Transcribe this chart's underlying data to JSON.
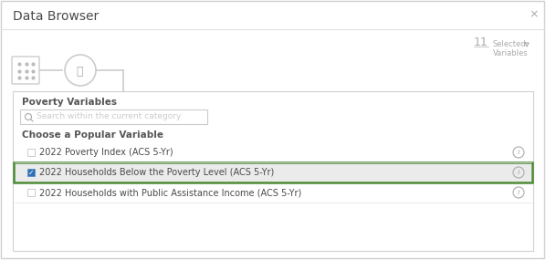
{
  "title": "Data Browser",
  "close_x": "×",
  "selected_label": "Selected\nVariables",
  "selected_number": "11",
  "category_title": "Poverty Variables",
  "search_placeholder": "Search within the current category",
  "choose_label": "Choose a Popular Variable",
  "items": [
    {
      "label": "2022 Poverty Index (ACS 5-Yr)",
      "checked": false,
      "highlighted": false
    },
    {
      "label": "2022 Households Below the Poverty Level (ACS 5-Yr)",
      "checked": true,
      "highlighted": true
    },
    {
      "label": "2022 Households with Public Assistance Income (ACS 5-Yr)",
      "checked": false,
      "highlighted": false
    }
  ],
  "bg_color": "#ffffff",
  "panel_bg": "#f8f8f8",
  "border_color": "#d0d0d0",
  "highlight_bg": "#ebebeb",
  "highlight_border": "#4e8a36",
  "check_color": "#3070b3",
  "title_color": "#4a4a4a",
  "text_color": "#4a4a4a",
  "gray_text": "#aaaaaa",
  "label_color": "#555555",
  "search_border": "#cccccc",
  "info_color": "#aaaaaa",
  "separator_color": "#e0e0e0"
}
